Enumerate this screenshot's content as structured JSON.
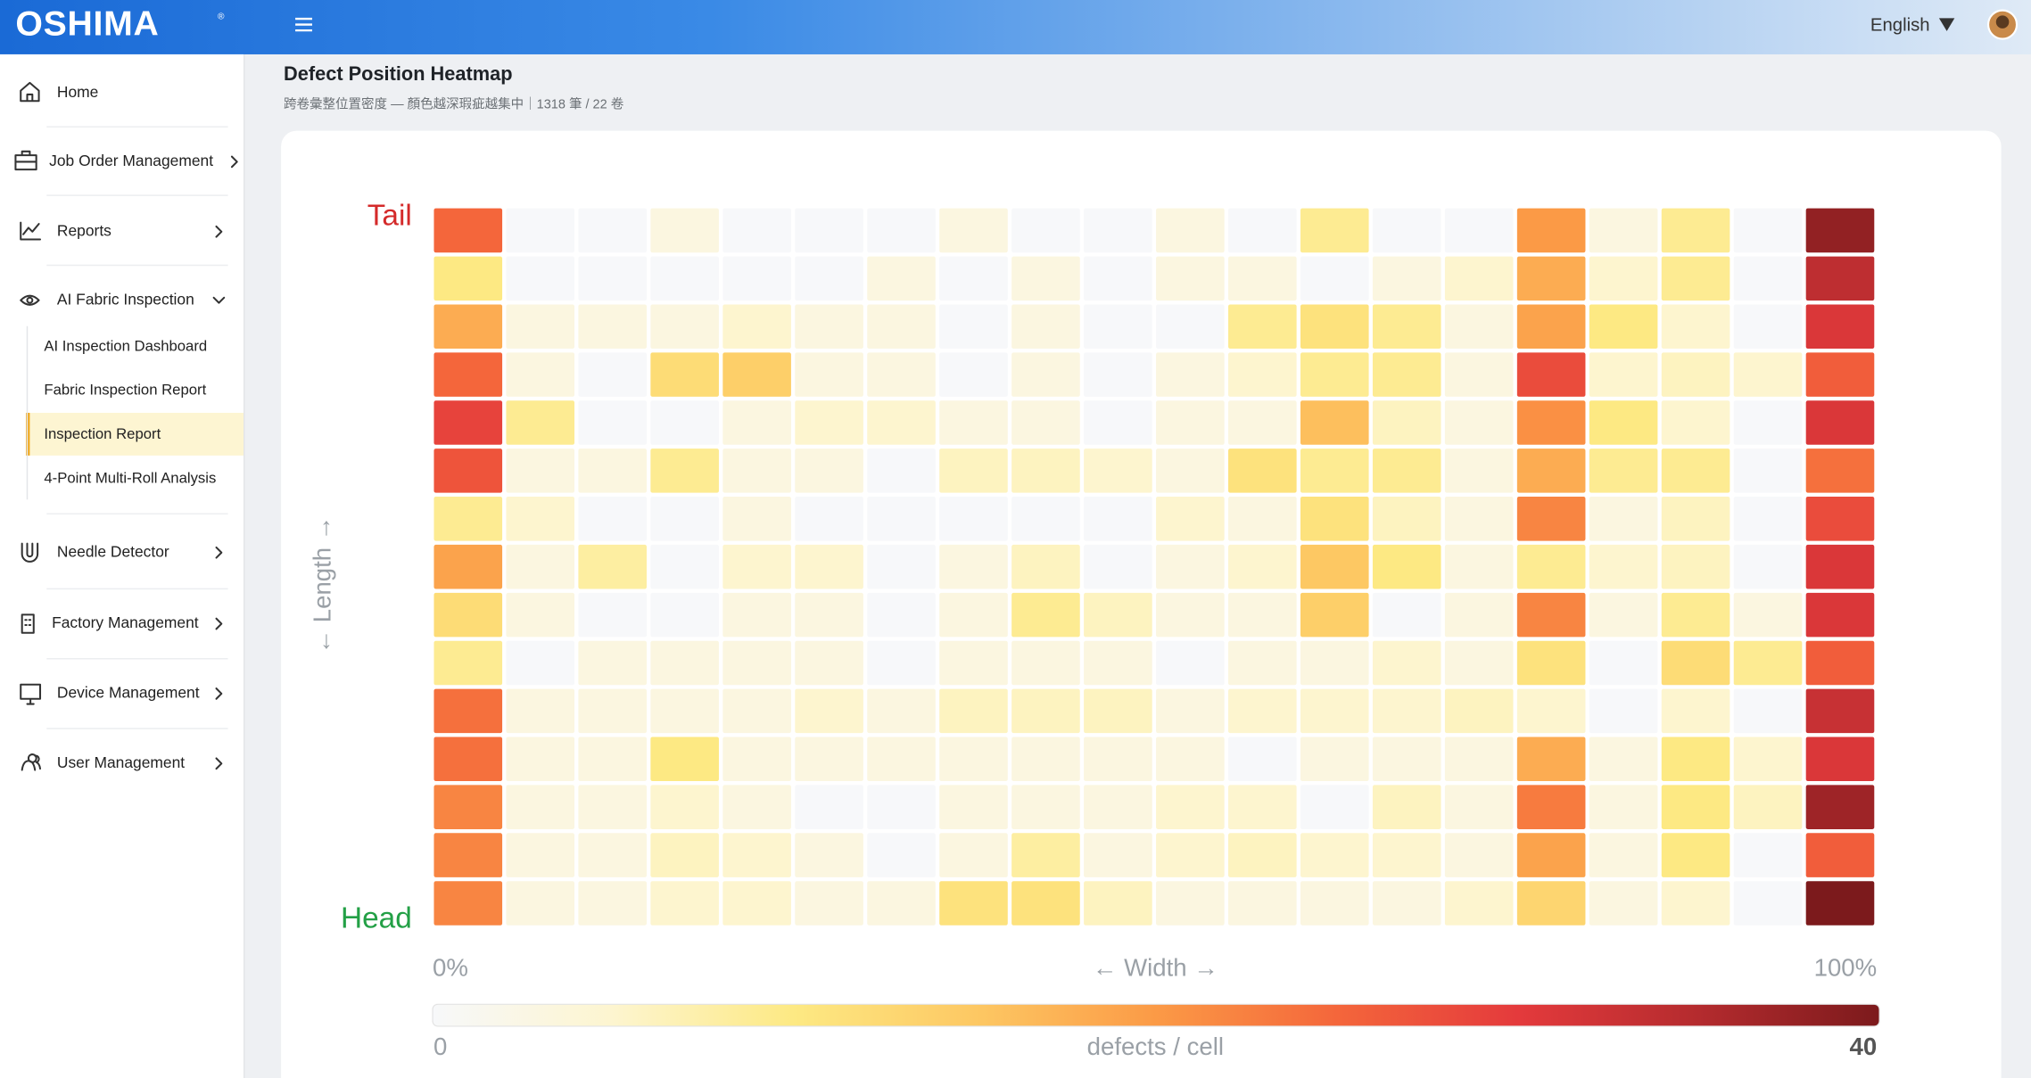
{
  "header": {
    "brand": "OSHIMA",
    "brand_mark": "®",
    "language": "English"
  },
  "sidebar": {
    "items": [
      {
        "label": "Home"
      },
      {
        "label": "Job Order Management"
      },
      {
        "label": "Reports"
      },
      {
        "label": "AI Fabric Inspection",
        "children": [
          "AI Inspection Dashboard",
          "Fabric Inspection Report",
          "Inspection Report",
          "4-Point Multi-Roll Analysis"
        ]
      },
      {
        "label": "Needle Detector"
      },
      {
        "label": "Factory Management"
      },
      {
        "label": "Device Management"
      },
      {
        "label": "User Management"
      }
    ]
  },
  "chart_data": {
    "type": "heatmap",
    "title": "Defect Position Heatmap",
    "subtitle": "跨卷彙整位置密度 — 顏色越深瑕疵越集中｜1318 筆 / 22 卷",
    "ytop_label": "Tail",
    "ybottom_label": "Head",
    "ylabel": "← Length →",
    "xleft_label": "0%",
    "xright_label": "100%",
    "xlabel": "← Width →",
    "zlim": [
      0,
      40
    ],
    "colorbar_ticks": [
      0,
      40
    ],
    "colorbar_label": "defects / cell",
    "colorscale": [
      "#f7f8fa",
      "#fdf5cf",
      "#fde983",
      "#fdc863",
      "#fb9a46",
      "#f4663b",
      "#e43a3c",
      "#b42b2e",
      "#7c1a1c"
    ],
    "values": [
      [
        25,
        0,
        0,
        3,
        0,
        0,
        0,
        3,
        0,
        0,
        3,
        0,
        9,
        0,
        0,
        20,
        3,
        9,
        0,
        38
      ],
      [
        10,
        0,
        0,
        0,
        0,
        0,
        3,
        0,
        3,
        0,
        3,
        3,
        0,
        3,
        5,
        18,
        5,
        9,
        0,
        34
      ],
      [
        18,
        3,
        3,
        3,
        5,
        3,
        3,
        0,
        3,
        0,
        0,
        9,
        11,
        9,
        3,
        19,
        10,
        5,
        0,
        31
      ],
      [
        25,
        3,
        0,
        12,
        14,
        3,
        3,
        0,
        3,
        0,
        3,
        5,
        9,
        9,
        3,
        28,
        5,
        6,
        5,
        26
      ],
      [
        29,
        9,
        0,
        0,
        3,
        5,
        5,
        3,
        3,
        0,
        3,
        3,
        16,
        6,
        3,
        21,
        10,
        5,
        0,
        31
      ],
      [
        27,
        3,
        3,
        9,
        3,
        3,
        0,
        6,
        6,
        5,
        3,
        11,
        9,
        9,
        3,
        18,
        9,
        9,
        0,
        24
      ],
      [
        9,
        5,
        0,
        0,
        3,
        0,
        0,
        0,
        0,
        0,
        5,
        3,
        11,
        6,
        3,
        22,
        3,
        6,
        0,
        28
      ],
      [
        19,
        3,
        8,
        0,
        5,
        5,
        0,
        3,
        6,
        0,
        3,
        5,
        15,
        10,
        3,
        9,
        5,
        6,
        0,
        31
      ],
      [
        12,
        3,
        0,
        0,
        3,
        3,
        0,
        3,
        9,
        6,
        3,
        3,
        14,
        0,
        3,
        22,
        3,
        9,
        3,
        31
      ],
      [
        9,
        0,
        3,
        3,
        3,
        3,
        0,
        3,
        3,
        3,
        0,
        3,
        3,
        5,
        3,
        11,
        0,
        12,
        9,
        26
      ],
      [
        24,
        3,
        3,
        3,
        3,
        5,
        3,
        6,
        6,
        6,
        3,
        5,
        5,
        5,
        6,
        5,
        0,
        5,
        0,
        33
      ],
      [
        24,
        3,
        3,
        10,
        3,
        3,
        3,
        3,
        3,
        3,
        3,
        0,
        3,
        3,
        3,
        18,
        3,
        10,
        5,
        31
      ],
      [
        22,
        3,
        3,
        5,
        3,
        0,
        0,
        3,
        3,
        3,
        5,
        5,
        0,
        6,
        3,
        23,
        3,
        10,
        6,
        37
      ],
      [
        22,
        3,
        3,
        6,
        5,
        3,
        0,
        3,
        8,
        3,
        5,
        6,
        5,
        5,
        3,
        19,
        3,
        10,
        0,
        26
      ],
      [
        22,
        3,
        3,
        5,
        5,
        3,
        3,
        11,
        11,
        6,
        3,
        3,
        3,
        3,
        5,
        13,
        3,
        5,
        0,
        40
      ]
    ]
  }
}
